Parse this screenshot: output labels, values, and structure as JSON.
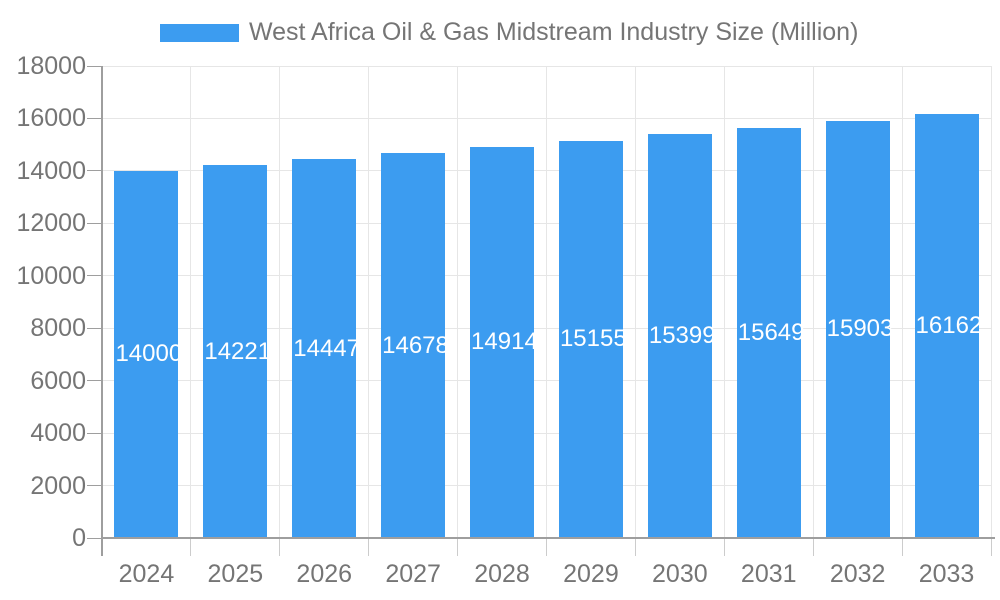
{
  "chart_data": {
    "type": "bar",
    "title": "West Africa Oil & Gas Midstream Industry Size (Million)",
    "categories": [
      "2024",
      "2025",
      "2026",
      "2027",
      "2028",
      "2029",
      "2030",
      "2031",
      "2032",
      "2033"
    ],
    "values": [
      14000,
      14221,
      14447,
      14678,
      14914,
      15155,
      15399,
      15649,
      15903,
      16162
    ],
    "series_name": "West Africa Oil & Gas Midstream Industry Size (Million)",
    "xlabel": "",
    "ylabel": "",
    "ylim": [
      0,
      18000
    ],
    "ytick_labels": [
      "0",
      "2000",
      "4000",
      "6000",
      "8000",
      "10000",
      "12000",
      "14000",
      "16000",
      "18000"
    ],
    "grid": "on",
    "legend_position": "top",
    "bar_labels_shown": true,
    "colors": {
      "bar": "#3C9CF0",
      "bar_label_text": "#ffffff",
      "axis_text": "#757575",
      "legend_text": "#757575",
      "gridline": "#e6e6e6",
      "axis_line": "#9e9e9e",
      "minor_tick": "#cccccc",
      "background": "#ffffff"
    }
  }
}
